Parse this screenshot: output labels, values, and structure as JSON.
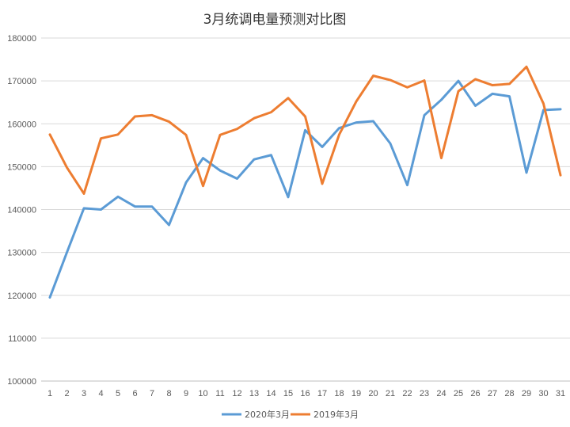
{
  "chart_data": {
    "type": "line",
    "title": "3月统调电量预测对比图",
    "xlabel": "",
    "ylabel": "",
    "ylim": [
      100000,
      180000
    ],
    "yticks": [
      "100000",
      "110000",
      "120000",
      "130000",
      "140000",
      "150000",
      "160000",
      "170000",
      "180000"
    ],
    "categories": [
      "1",
      "2",
      "3",
      "4",
      "5",
      "6",
      "7",
      "8",
      "9",
      "10",
      "11",
      "12",
      "13",
      "14",
      "15",
      "16",
      "17",
      "18",
      "19",
      "20",
      "21",
      "22",
      "23",
      "24",
      "25",
      "26",
      "27",
      "28",
      "29",
      "30",
      "31"
    ],
    "grid": true,
    "legend_position": "bottom",
    "series": [
      {
        "name": "2020年3月",
        "color": "#5b9bd5",
        "values": [
          119500,
          130000,
          140300,
          140000,
          143000,
          140700,
          140700,
          136400,
          146300,
          152000,
          149100,
          147200,
          151700,
          152700,
          142900,
          158500,
          154600,
          159000,
          160300,
          160600,
          155400,
          145700,
          162000,
          165600,
          170000,
          164200,
          167000,
          166400,
          148600,
          163200,
          163400
        ]
      },
      {
        "name": "2019年3月",
        "color": "#ed7d31",
        "values": [
          157500,
          149800,
          143700,
          156600,
          157500,
          161700,
          162000,
          160500,
          157400,
          145500,
          157400,
          158800,
          161300,
          162700,
          166000,
          161700,
          146000,
          157500,
          165200,
          171200,
          170200,
          168500,
          170100,
          152000,
          167600,
          170400,
          169000,
          169300,
          173300,
          164700,
          148000
        ]
      }
    ]
  }
}
